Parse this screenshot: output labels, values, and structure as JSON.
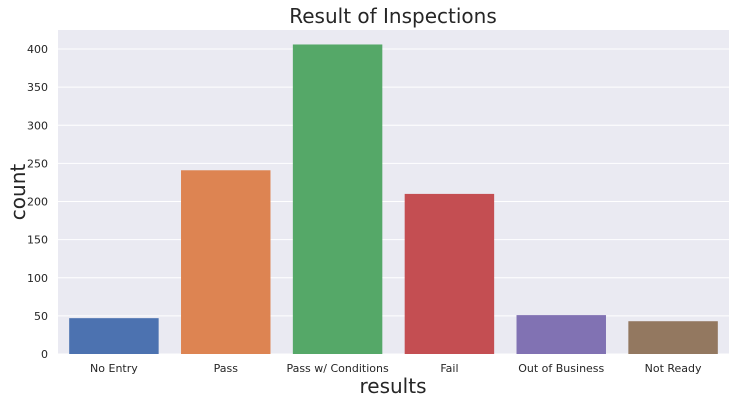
{
  "chart_data": {
    "type": "bar",
    "title": "Result of Inspections",
    "xlabel": "results",
    "ylabel": "count",
    "categories": [
      "No Entry",
      "Pass",
      "Pass w/ Conditions",
      "Fail",
      "Out of Business",
      "Not Ready"
    ],
    "values": [
      47,
      241,
      406,
      210,
      51,
      43
    ],
    "colors": [
      "#4c72b0",
      "#dd8452",
      "#55a868",
      "#c44e52",
      "#8172b3",
      "#937860"
    ],
    "ylim": [
      0,
      425
    ],
    "yticks": [
      "0",
      "50",
      "100",
      "150",
      "200",
      "250",
      "300",
      "350",
      "400"
    ],
    "grid": true,
    "plot_background": "#eaeaf2",
    "grid_color": "#ffffff"
  }
}
